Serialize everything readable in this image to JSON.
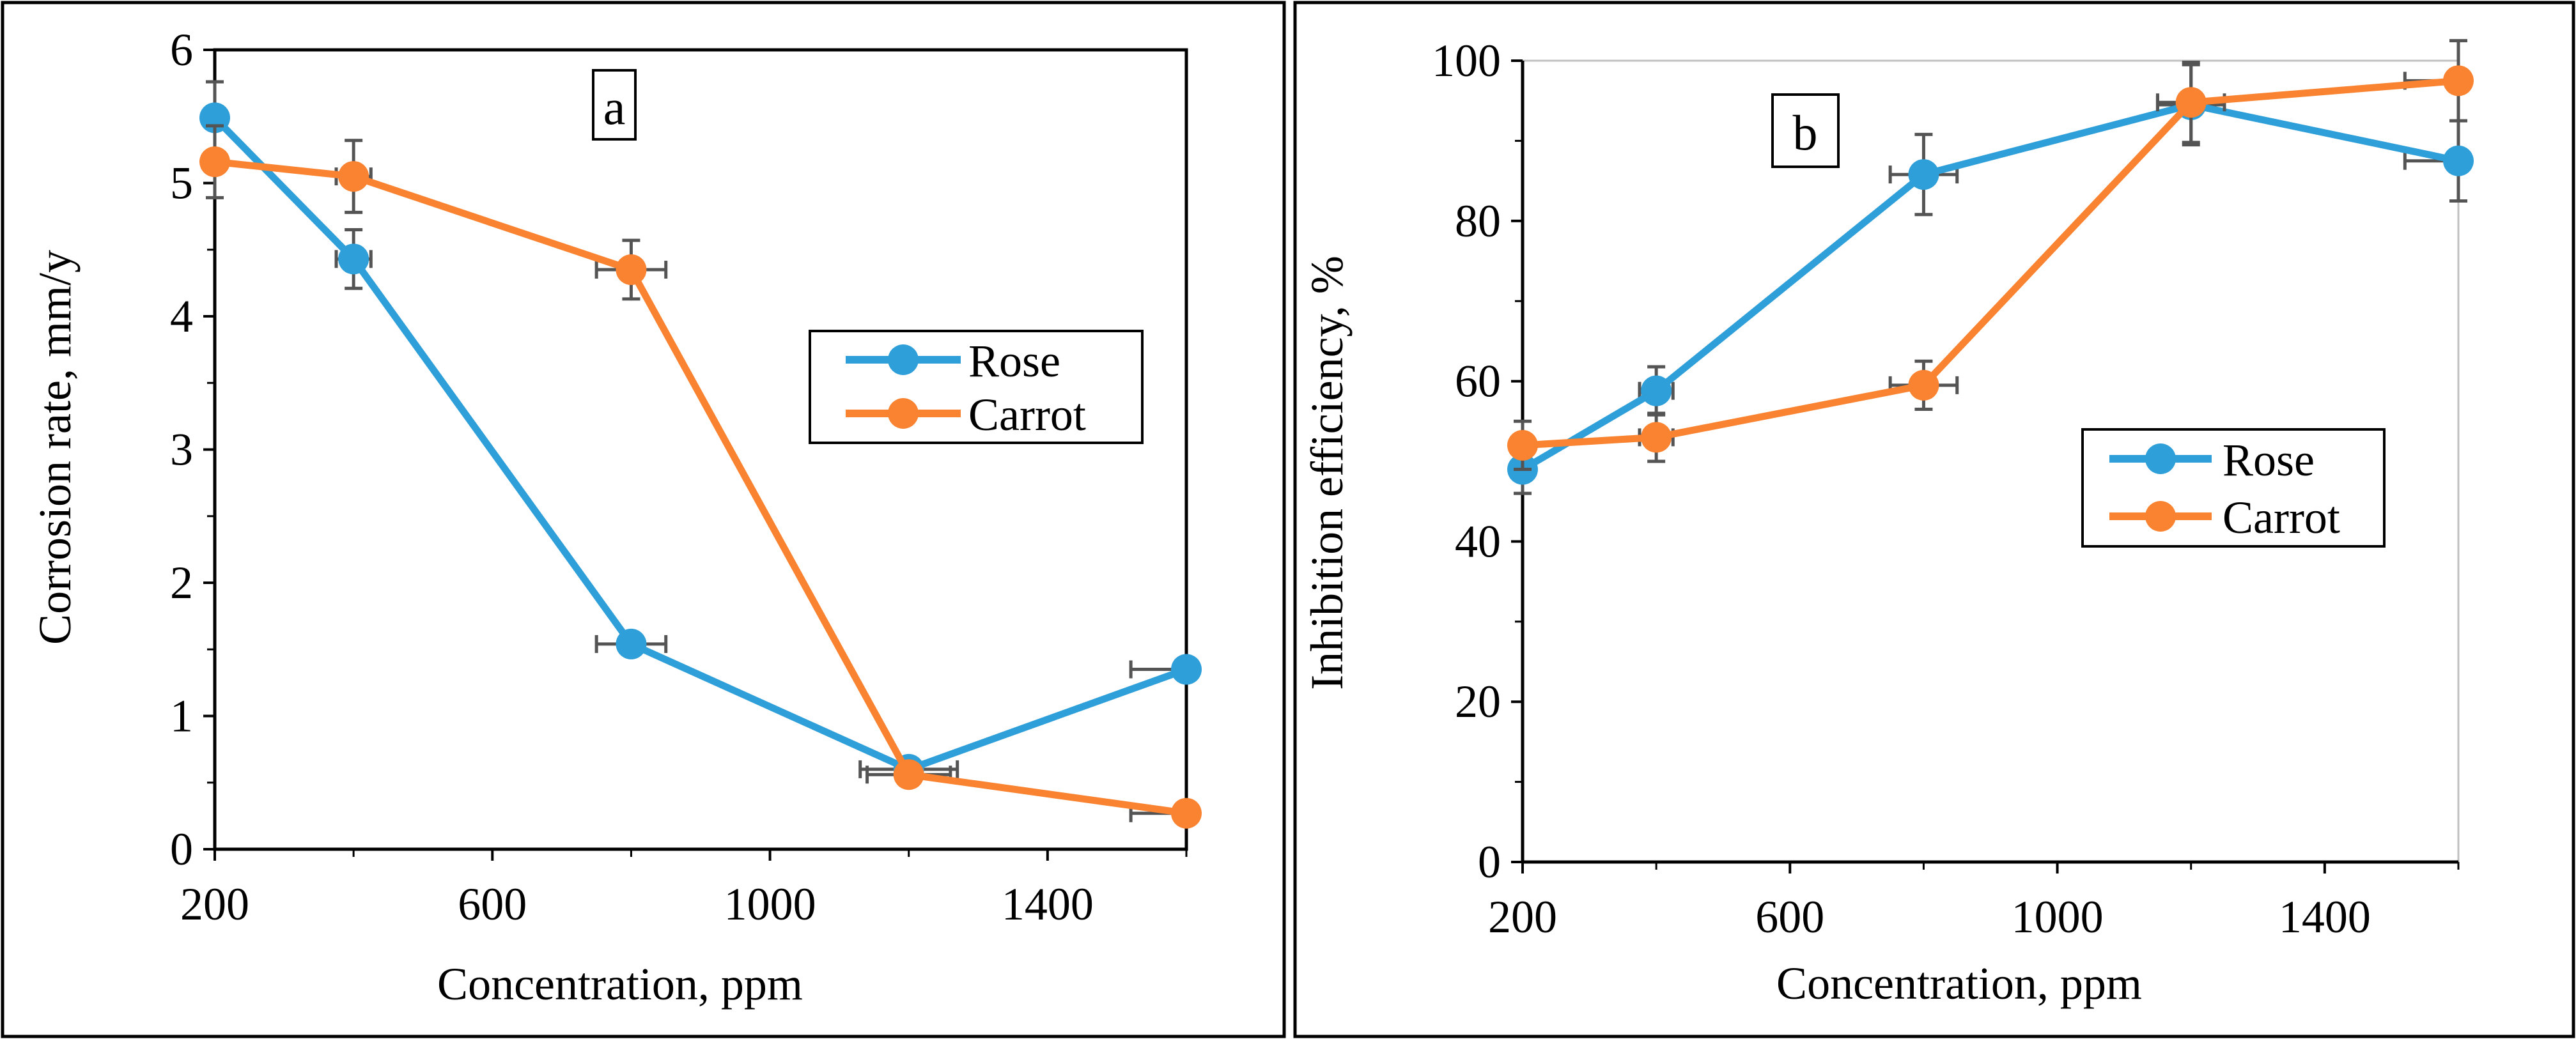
{
  "colors": {
    "rose": "#2E9FD8",
    "carrot": "#F98330",
    "error_bar": "#545454",
    "axis": "#000000",
    "frame": "#000000"
  },
  "chart_data": [
    {
      "type": "line",
      "panel_label": "a",
      "xlabel": "Concentration, ppm",
      "ylabel": "Corrosion rate, mm/y",
      "xlim": [
        200,
        1600
      ],
      "ylim": [
        0,
        6
      ],
      "x_ticks": [
        "200",
        "600",
        "1000",
        "1400"
      ],
      "y_ticks": [
        "0",
        "1",
        "2",
        "3",
        "4",
        "5",
        "6"
      ],
      "grid": false,
      "legend_position": "right",
      "x": [
        200,
        400,
        800,
        1200,
        1600
      ],
      "series": [
        {
          "name": "Rose",
          "color_key": "rose",
          "values": [
            5.49,
            4.43,
            1.54,
            0.6,
            1.35
          ],
          "error_y": [
            0.27,
            0.22,
            0.05,
            0.03,
            0.03
          ],
          "error_x": [
            0,
            25,
            50,
            70,
            80
          ]
        },
        {
          "name": "Carrot",
          "color_key": "carrot",
          "values": [
            5.16,
            5.05,
            4.35,
            0.56,
            0.27
          ],
          "error_y": [
            0.27,
            0.27,
            0.22,
            0.03,
            0.03
          ],
          "error_x": [
            0,
            25,
            50,
            60,
            80
          ]
        }
      ]
    },
    {
      "type": "line",
      "panel_label": "b",
      "xlabel": "Concentration, ppm",
      "ylabel": "Inhibition efficiency, %",
      "xlim": [
        200,
        1600
      ],
      "ylim": [
        0,
        100
      ],
      "x_ticks": [
        "200",
        "600",
        "1000",
        "1400"
      ],
      "y_ticks": [
        "0",
        "20",
        "40",
        "60",
        "80",
        "100"
      ],
      "grid": false,
      "legend_position": "right",
      "x": [
        200,
        400,
        800,
        1200,
        1600
      ],
      "series": [
        {
          "name": "Rose",
          "color_key": "rose",
          "values": [
            49,
            58.8,
            85.8,
            94.5,
            87.5
          ],
          "error_y": [
            3,
            3,
            5,
            5,
            5
          ],
          "error_x": [
            0,
            25,
            50,
            50,
            80
          ]
        },
        {
          "name": "Carrot",
          "color_key": "carrot",
          "values": [
            52,
            53,
            59.5,
            94.8,
            97.5
          ],
          "error_y": [
            3,
            3,
            3,
            5,
            5
          ],
          "error_x": [
            0,
            25,
            50,
            50,
            80
          ]
        }
      ]
    }
  ]
}
